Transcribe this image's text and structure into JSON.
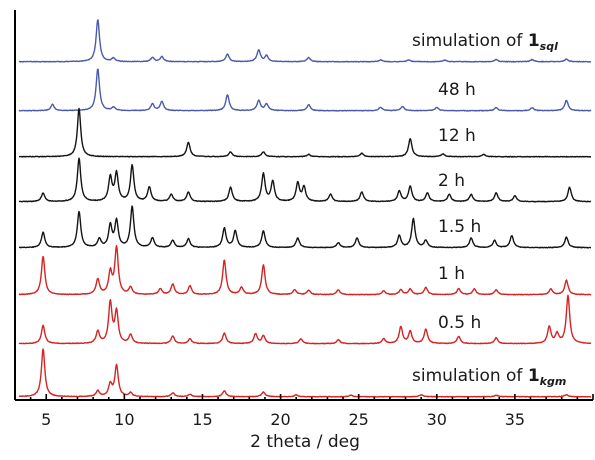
{
  "chart_data": {
    "type": "line",
    "xlabel": "2 theta / deg",
    "ylabel": "",
    "xlim": [
      3,
      40
    ],
    "x_ticks": [
      "5",
      "10",
      "15",
      "20",
      "25",
      "30",
      "35"
    ],
    "grid": false,
    "colors": {
      "blue": "#4a5bab",
      "black": "#141414",
      "red": "#d42424"
    },
    "series": [
      {
        "label_main": "simulation of ",
        "label_bold": "1",
        "label_sub": "sql",
        "color": "blue",
        "peaks": [
          [
            8.3,
            1.0
          ],
          [
            9.3,
            0.08
          ],
          [
            11.8,
            0.1
          ],
          [
            12.4,
            0.12
          ],
          [
            16.6,
            0.18
          ],
          [
            18.6,
            0.28
          ],
          [
            19.1,
            0.14
          ],
          [
            21.8,
            0.1
          ],
          [
            26.4,
            0.04
          ],
          [
            28.2,
            0.04
          ],
          [
            30.5,
            0.04
          ],
          [
            33.8,
            0.05
          ],
          [
            36.1,
            0.05
          ],
          [
            38.3,
            0.06
          ]
        ]
      },
      {
        "label_main": "48 h",
        "label_bold": "",
        "label_sub": "",
        "color": "blue",
        "peaks": [
          [
            5.4,
            0.15
          ],
          [
            8.3,
            1.0
          ],
          [
            9.3,
            0.08
          ],
          [
            11.8,
            0.16
          ],
          [
            12.4,
            0.22
          ],
          [
            16.6,
            0.38
          ],
          [
            18.6,
            0.24
          ],
          [
            19.1,
            0.16
          ],
          [
            21.8,
            0.14
          ],
          [
            26.4,
            0.08
          ],
          [
            27.8,
            0.1
          ],
          [
            30.0,
            0.08
          ],
          [
            33.8,
            0.07
          ],
          [
            36.1,
            0.07
          ],
          [
            38.3,
            0.25
          ]
        ]
      },
      {
        "label_main": "12 h",
        "label_bold": "",
        "label_sub": "",
        "color": "black",
        "peaks": [
          [
            7.1,
            1.0
          ],
          [
            14.1,
            0.3
          ],
          [
            16.8,
            0.1
          ],
          [
            18.9,
            0.1
          ],
          [
            21.8,
            0.05
          ],
          [
            25.2,
            0.07
          ],
          [
            28.3,
            0.38
          ],
          [
            30.4,
            0.06
          ],
          [
            33.0,
            0.05
          ]
        ]
      },
      {
        "label_main": "2 h",
        "label_bold": "",
        "label_sub": "",
        "color": "black",
        "peaks": [
          [
            4.8,
            0.18
          ],
          [
            7.1,
            0.9
          ],
          [
            9.1,
            0.5
          ],
          [
            9.5,
            0.58
          ],
          [
            10.5,
            0.75
          ],
          [
            11.6,
            0.3
          ],
          [
            13.0,
            0.15
          ],
          [
            14.1,
            0.2
          ],
          [
            16.8,
            0.3
          ],
          [
            18.9,
            0.58
          ],
          [
            19.5,
            0.42
          ],
          [
            21.1,
            0.38
          ],
          [
            21.5,
            0.3
          ],
          [
            23.2,
            0.15
          ],
          [
            25.2,
            0.2
          ],
          [
            27.6,
            0.22
          ],
          [
            28.3,
            0.32
          ],
          [
            29.4,
            0.18
          ],
          [
            30.8,
            0.15
          ],
          [
            32.2,
            0.15
          ],
          [
            33.8,
            0.18
          ],
          [
            35.0,
            0.12
          ],
          [
            38.5,
            0.3
          ]
        ]
      },
      {
        "label_main": "1.5 h",
        "label_bold": "",
        "label_sub": "",
        "color": "black",
        "peaks": [
          [
            4.8,
            0.32
          ],
          [
            7.1,
            0.75
          ],
          [
            8.4,
            0.18
          ],
          [
            9.1,
            0.45
          ],
          [
            9.5,
            0.55
          ],
          [
            10.5,
            0.85
          ],
          [
            11.8,
            0.2
          ],
          [
            13.1,
            0.15
          ],
          [
            14.1,
            0.18
          ],
          [
            16.4,
            0.4
          ],
          [
            17.1,
            0.35
          ],
          [
            18.9,
            0.35
          ],
          [
            21.1,
            0.2
          ],
          [
            23.7,
            0.1
          ],
          [
            24.9,
            0.2
          ],
          [
            27.6,
            0.25
          ],
          [
            28.5,
            0.6
          ],
          [
            29.3,
            0.15
          ],
          [
            32.2,
            0.2
          ],
          [
            33.7,
            0.15
          ],
          [
            34.8,
            0.25
          ],
          [
            38.3,
            0.22
          ]
        ]
      },
      {
        "label_main": "1 h",
        "label_bold": "",
        "label_sub": "",
        "color": "red",
        "peaks": [
          [
            4.8,
            0.8
          ],
          [
            8.3,
            0.32
          ],
          [
            9.1,
            0.45
          ],
          [
            9.5,
            0.98
          ],
          [
            10.4,
            0.15
          ],
          [
            12.3,
            0.12
          ],
          [
            13.1,
            0.22
          ],
          [
            14.2,
            0.18
          ],
          [
            16.4,
            0.72
          ],
          [
            17.5,
            0.15
          ],
          [
            18.9,
            0.62
          ],
          [
            20.9,
            0.1
          ],
          [
            21.8,
            0.09
          ],
          [
            23.7,
            0.1
          ],
          [
            26.6,
            0.08
          ],
          [
            27.7,
            0.1
          ],
          [
            28.3,
            0.12
          ],
          [
            29.3,
            0.15
          ],
          [
            31.4,
            0.12
          ],
          [
            32.4,
            0.12
          ],
          [
            33.8,
            0.1
          ],
          [
            37.3,
            0.12
          ],
          [
            38.3,
            0.3
          ]
        ]
      },
      {
        "label_main": "0.5 h",
        "label_bold": "",
        "label_sub": "",
        "color": "red",
        "peaks": [
          [
            4.8,
            0.38
          ],
          [
            8.3,
            0.25
          ],
          [
            9.1,
            0.85
          ],
          [
            9.5,
            0.65
          ],
          [
            10.4,
            0.18
          ],
          [
            13.1,
            0.16
          ],
          [
            14.2,
            0.1
          ],
          [
            16.4,
            0.22
          ],
          [
            18.4,
            0.2
          ],
          [
            18.9,
            0.16
          ],
          [
            21.3,
            0.1
          ],
          [
            23.7,
            0.08
          ],
          [
            26.6,
            0.1
          ],
          [
            27.7,
            0.35
          ],
          [
            28.3,
            0.25
          ],
          [
            29.3,
            0.3
          ],
          [
            31.4,
            0.15
          ],
          [
            33.8,
            0.12
          ],
          [
            37.2,
            0.35
          ],
          [
            37.7,
            0.2
          ],
          [
            38.4,
            1.0
          ]
        ]
      },
      {
        "label_main": "simulation of ",
        "label_bold": "1",
        "label_sub": "kgm",
        "color": "red",
        "peaks": [
          [
            4.8,
            1.0
          ],
          [
            8.3,
            0.12
          ],
          [
            9.1,
            0.25
          ],
          [
            9.5,
            0.65
          ],
          [
            10.4,
            0.08
          ],
          [
            13.1,
            0.08
          ],
          [
            14.2,
            0.05
          ],
          [
            16.4,
            0.12
          ],
          [
            18.9,
            0.1
          ],
          [
            21.0,
            0.04
          ],
          [
            24.5,
            0.03
          ],
          [
            29.0,
            0.04
          ],
          [
            33.8,
            0.03
          ],
          [
            38.3,
            0.04
          ]
        ]
      }
    ]
  }
}
